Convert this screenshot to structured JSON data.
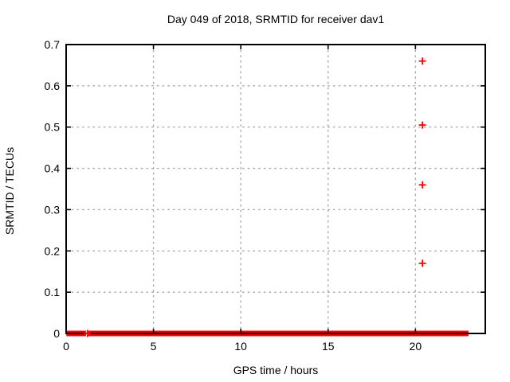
{
  "chart_data": {
    "type": "scatter",
    "title": "Day 049 of 2018, SRMTID for receiver dav1",
    "xlabel": "GPS time / hours",
    "ylabel": "SRMTID / TECUs",
    "xlim": [
      0,
      24
    ],
    "ylim": [
      0,
      0.7
    ],
    "xticks": [
      0,
      5,
      10,
      15,
      20
    ],
    "yticks": [
      0,
      0.1,
      0.2,
      0.3,
      0.4,
      0.5,
      0.6,
      0.7
    ],
    "grid": true,
    "legend": "none",
    "marker": "plus",
    "series": [
      {
        "name": "SRMTID",
        "color": "#ff0000",
        "points": [
          {
            "x": 20.4,
            "y": 0.66
          },
          {
            "x": 20.4,
            "y": 0.505
          },
          {
            "x": 20.4,
            "y": 0.36
          },
          {
            "x": 20.4,
            "y": 0.17
          },
          {
            "x": 1.22,
            "y": 0.0
          }
        ],
        "zero_band_segments": [
          [
            0.15,
            1.0
          ],
          [
            1.4,
            15.55
          ],
          [
            15.75,
            22.9
          ]
        ],
        "zero_band_value": 0.0
      }
    ],
    "colors": {
      "background": "#ffffff",
      "axis": "#000000",
      "grid": "#a6a6a6",
      "text": "#000000"
    }
  }
}
